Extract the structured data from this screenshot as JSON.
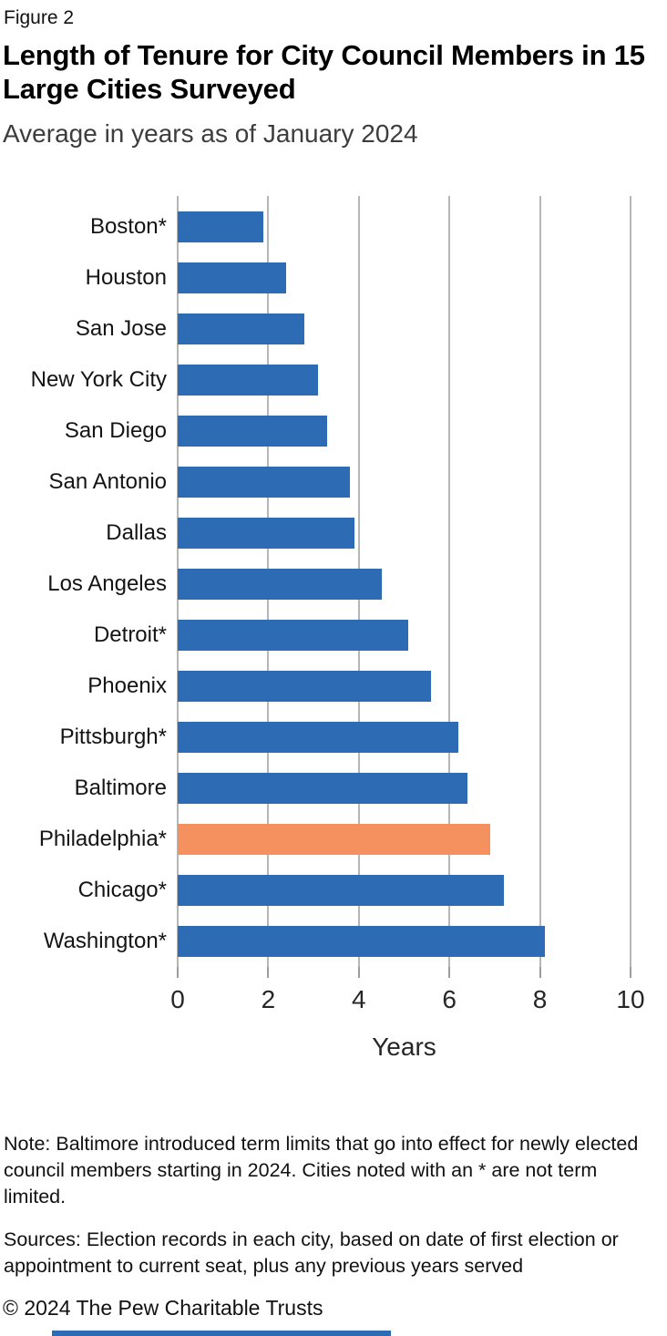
{
  "figure_label": "Figure 2",
  "title": "Length of Tenure for City Council Members in 15 Large Cities Surveyed",
  "subtitle": "Average in years as of January 2024",
  "chart_data": {
    "type": "bar",
    "orientation": "horizontal",
    "title": "Length of Tenure for City Council Members in 15 Large Cities Surveyed",
    "subtitle": "Average in years as of January 2024",
    "categories": [
      "Boston*",
      "Houston",
      "San Jose",
      "New York City",
      "San Diego",
      "San Antonio",
      "Dallas",
      "Los Angeles",
      "Detroit*",
      "Phoenix",
      "Pittsburgh*",
      "Baltimore",
      "Philadelphia*",
      "Chicago*",
      "Washington*"
    ],
    "values": [
      1.9,
      2.4,
      2.8,
      3.1,
      3.3,
      3.8,
      3.9,
      4.5,
      5.1,
      5.6,
      6.2,
      6.4,
      6.9,
      7.2,
      8.1
    ],
    "xlabel": "Years",
    "ylabel": "",
    "xlim": [
      0,
      10
    ],
    "xticks": [
      0,
      2,
      4,
      6,
      8,
      10
    ],
    "grid": "vertical-gridlines-on",
    "legend": "none",
    "bar_color": "#2e6bb5",
    "highlight_color": "#f5915f",
    "highlighted_category": "Philadelphia*"
  },
  "footer": {
    "note": "Note: Baltimore introduced term limits that go into effect for newly elected council members starting in 2024. Cities noted with an * are not term limited.",
    "sources": "Sources: Election records in each city, based on date of first election or appointment to current seat, plus any previous years served",
    "copyright": "© 2024 The Pew Charitable Trusts"
  },
  "colors": {
    "bar_blue": "#2e6bb5",
    "bar_orange": "#f5915f",
    "gridline_gray": "#b7b7b7"
  }
}
